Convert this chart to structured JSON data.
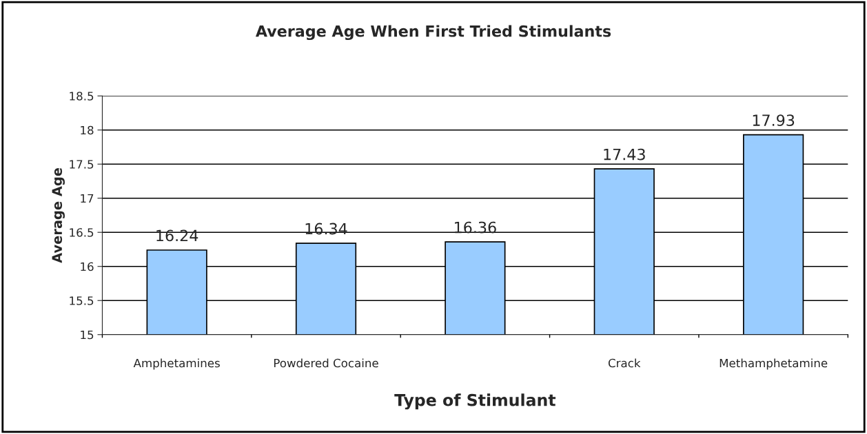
{
  "chart_data": {
    "type": "bar",
    "title": "Average Age When First Tried Stimulants",
    "xlabel": "Type of Stimulant",
    "ylabel": "Average Age",
    "categories": [
      "Amphetamines",
      "Powdered Cocaine",
      null,
      "Crack",
      "Methamphetamine"
    ],
    "values": [
      16.24,
      16.34,
      16.36,
      17.43,
      17.93
    ],
    "color": "#99ccff",
    "ylim": [
      15,
      18.5
    ],
    "yticks": [
      15,
      15.5,
      16,
      16.5,
      17,
      17.5,
      18,
      18.5
    ],
    "grid": "y",
    "data_labels": true
  }
}
